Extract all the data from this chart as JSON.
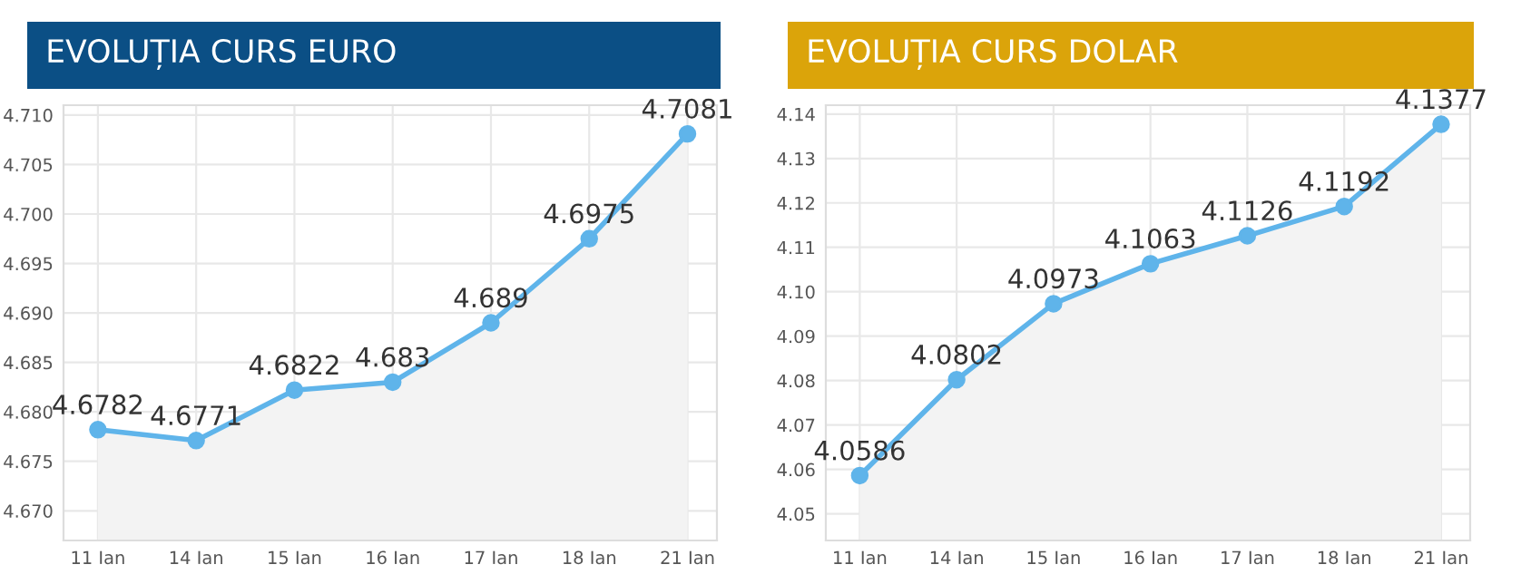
{
  "chart_data": [
    {
      "type": "area",
      "title": "EVOLUȚIA CURS EURO",
      "categories": [
        "11 Ian",
        "14 Ian",
        "15 Ian",
        "16 Ian",
        "17 Ian",
        "18 Ian",
        "21 Ian"
      ],
      "series": [
        {
          "color": "#5fb4ea",
          "values": [
            4.6782,
            4.6771,
            4.6822,
            4.683,
            4.689,
            4.6975,
            4.7081
          ]
        }
      ],
      "ylim": [
        4.667,
        4.711
      ],
      "yticks": [
        {
          "value": 4.67,
          "label": "4.670"
        },
        4.675,
        {
          "value": 4.68,
          "label": "4.680"
        },
        4.685,
        {
          "value": 4.69,
          "label": "4.690"
        },
        4.695,
        {
          "value": 4.7,
          "label": "4.700"
        },
        4.705,
        {
          "value": 4.71,
          "label": "4.710"
        }
      ],
      "grid": true,
      "marker": "circle",
      "data_labels": true,
      "legend": false
    },
    {
      "type": "area",
      "title": "EVOLUȚIA CURS DOLAR",
      "categories": [
        "11 Ian",
        "14 Ian",
        "15 Ian",
        "16 Ian",
        "17 Ian",
        "18 Ian",
        "21 Ian"
      ],
      "series": [
        {
          "color": "#5fb4ea",
          "values": [
            4.0586,
            4.0802,
            4.0973,
            4.1063,
            4.1126,
            4.1192,
            4.1377
          ]
        }
      ],
      "ylim": [
        4.044,
        4.142
      ],
      "yticks": [
        4.05,
        4.06,
        4.07,
        4.08,
        4.09,
        {
          "value": 4.1,
          "label": "4.10"
        },
        4.11,
        4.12,
        4.13,
        4.14
      ],
      "grid": true,
      "marker": "circle",
      "data_labels": true,
      "legend": false
    }
  ]
}
